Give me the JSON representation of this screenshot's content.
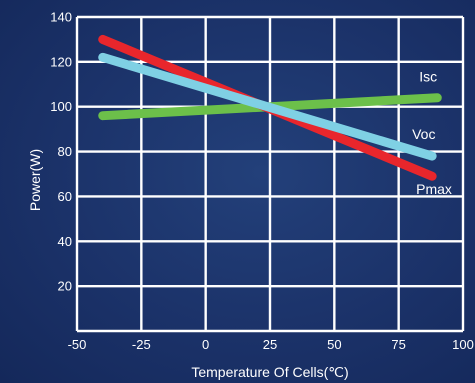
{
  "chart_data": {
    "type": "line",
    "title": "",
    "xlabel": "Temperature Of Cells(℃)",
    "ylabel": "Power(W)",
    "xlim": [
      -50,
      100
    ],
    "ylim": [
      0,
      140
    ],
    "x_ticks": [
      -50,
      -25,
      0,
      25,
      50,
      75,
      100
    ],
    "x_tick_labels": [
      "-50",
      "-25",
      "0",
      "25",
      "50",
      "75",
      "100"
    ],
    "y_ticks": [
      20,
      40,
      60,
      80,
      100,
      120,
      140
    ],
    "y_tick_labels": [
      "20",
      "40",
      "60",
      "80",
      "100",
      "120",
      "140"
    ],
    "grid": true,
    "series": [
      {
        "name": "Isc",
        "x": [
          -40,
          90
        ],
        "y": [
          96,
          104
        ],
        "color": "#6cc04a"
      },
      {
        "name": "Pmax",
        "x": [
          -40,
          88
        ],
        "y": [
          130,
          69
        ],
        "color": "#e8262c"
      },
      {
        "name": "Voc",
        "x": [
          -40,
          88
        ],
        "y": [
          122,
          78
        ],
        "color": "#7fd0e4"
      }
    ]
  }
}
